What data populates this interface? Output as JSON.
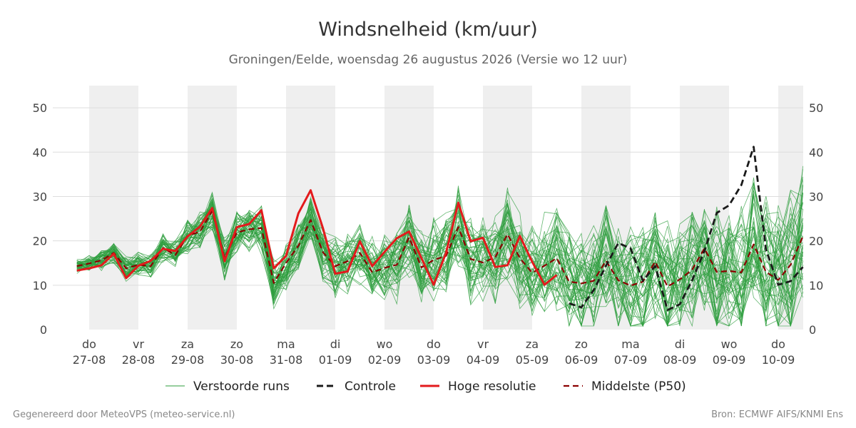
{
  "chart_data": {
    "type": "line",
    "title": "Windsnelheid (km/uur)",
    "subtitle": "Groningen/Eelde, woensdag 26 augustus 2026 (Versie wo 12 uur)",
    "ylim": [
      0,
      55
    ],
    "yticks": [
      0,
      10,
      20,
      30,
      40,
      50
    ],
    "xlim_days": [
      0,
      14.5
    ],
    "day_ticks": [
      {
        "day": "do",
        "date": "27-08"
      },
      {
        "day": "vr",
        "date": "28-08"
      },
      {
        "day": "za",
        "date": "29-08"
      },
      {
        "day": "zo",
        "date": "30-08"
      },
      {
        "day": "ma",
        "date": "31-08"
      },
      {
        "day": "di",
        "date": "01-09"
      },
      {
        "day": "wo",
        "date": "02-09"
      },
      {
        "day": "do",
        "date": "03-09"
      },
      {
        "day": "vr",
        "date": "04-09"
      },
      {
        "day": "za",
        "date": "05-09"
      },
      {
        "day": "zo",
        "date": "06-09"
      },
      {
        "day": "ma",
        "date": "07-09"
      },
      {
        "day": "di",
        "date": "08-09"
      },
      {
        "day": "wo",
        "date": "09-09"
      },
      {
        "day": "do",
        "date": "10-09"
      }
    ],
    "grid": true,
    "legend_position": "bottom",
    "colors": {
      "ensemble": "#2e9e3e",
      "controle": "#1a1a1a",
      "hoge_resolutie": "#e31a1c",
      "p50": "#8b0000",
      "shading": "#efefef",
      "grid": "#dddddd"
    },
    "legend": [
      {
        "key": "ensemble",
        "label": "Verstoorde runs"
      },
      {
        "key": "controle",
        "label": "Controle"
      },
      {
        "key": "hoge_resolutie",
        "label": "Hoge resolutie"
      },
      {
        "key": "p50",
        "label": "Middelste (P50)"
      }
    ],
    "series": [
      {
        "key": "hoge_resolutie",
        "name": "Hoge resolutie",
        "x": [
          -0.25,
          0,
          0.25,
          0.5,
          0.75,
          1,
          1.25,
          1.5,
          1.75,
          2,
          2.25,
          2.5,
          2.75,
          3,
          3.25,
          3.5,
          3.75,
          4,
          4.25,
          4.5,
          4.75,
          5,
          5.25,
          5.5,
          5.75,
          6,
          6.25,
          6.5,
          6.75,
          7,
          7.25,
          7.5,
          7.75,
          8,
          8.25,
          8.5,
          8.75,
          9,
          9.25,
          9.5
        ],
        "values": [
          13.3,
          13.8,
          14.5,
          17.1,
          11.6,
          14.4,
          15.5,
          18.2,
          17.7,
          21.0,
          23.2,
          27.4,
          15.4,
          23.1,
          23.8,
          26.9,
          13.8,
          16.6,
          26.2,
          31.4,
          22.8,
          12.6,
          13.1,
          19.9,
          14.3,
          17.5,
          20.6,
          22.1,
          16.1,
          10.1,
          17.3,
          28.6,
          19.9,
          20.7,
          14.1,
          14.5,
          21.1,
          15.3,
          10.1,
          12.3
        ]
      },
      {
        "key": "controle",
        "name": "Controle",
        "x": [
          9.75,
          10,
          10.25,
          10.5,
          10.75,
          11,
          11.25,
          11.5,
          11.75,
          12,
          12.25,
          12.5,
          12.75,
          13,
          13.25,
          13.5,
          13.75,
          14,
          14.25,
          14.5
        ],
        "values": [
          5.9,
          5.0,
          8.9,
          14.4,
          19.5,
          18.3,
          11.0,
          14.3,
          4.4,
          5.7,
          11.1,
          17.7,
          26.3,
          28.0,
          32.6,
          41.2,
          18.0,
          10.1,
          10.9,
          14.1
        ]
      },
      {
        "key": "p50",
        "name": "Middelste (P50)",
        "x": [
          -0.25,
          0,
          0.25,
          0.5,
          0.75,
          1,
          1.25,
          1.5,
          1.75,
          2,
          2.25,
          2.5,
          2.75,
          3,
          3.25,
          3.5,
          3.75,
          4,
          4.25,
          4.5,
          4.75,
          5,
          5.25,
          5.5,
          5.75,
          6,
          6.25,
          6.5,
          6.75,
          7,
          7.25,
          7.5,
          7.75,
          8,
          8.25,
          8.5,
          8.75,
          9,
          9.25,
          9.5,
          9.75,
          10,
          10.25,
          10.5,
          10.75,
          11,
          11.25,
          11.5,
          11.75,
          12,
          12.25,
          12.5,
          12.75,
          13,
          13.25,
          13.5,
          13.75,
          14,
          14.25,
          14.5
        ],
        "values": [
          14.3,
          14.9,
          15.6,
          17.3,
          13.8,
          14.6,
          14.3,
          18.4,
          16.8,
          21.1,
          22.1,
          26.7,
          16.2,
          21.9,
          22.6,
          22.9,
          10.5,
          15.0,
          18.9,
          24.7,
          17.4,
          14.3,
          15.4,
          17.3,
          12.9,
          13.9,
          14.6,
          20.8,
          14.0,
          15.7,
          16.6,
          23.1,
          15.9,
          15.1,
          16.3,
          21.5,
          16.1,
          12.8,
          14.4,
          16.1,
          10.8,
          10.4,
          11.0,
          15.5,
          11.1,
          9.9,
          10.8,
          15.3,
          9.7,
          11.3,
          13.5,
          18.3,
          13.0,
          13.2,
          12.9,
          19.2,
          13.0,
          11.2,
          14.6,
          21.0
        ]
      }
    ]
  },
  "footer": {
    "left": "Gegenereerd door MeteoVPS (meteo-service.nl)",
    "right": "Bron: ECMWF AIFS/KNMI Ens"
  }
}
